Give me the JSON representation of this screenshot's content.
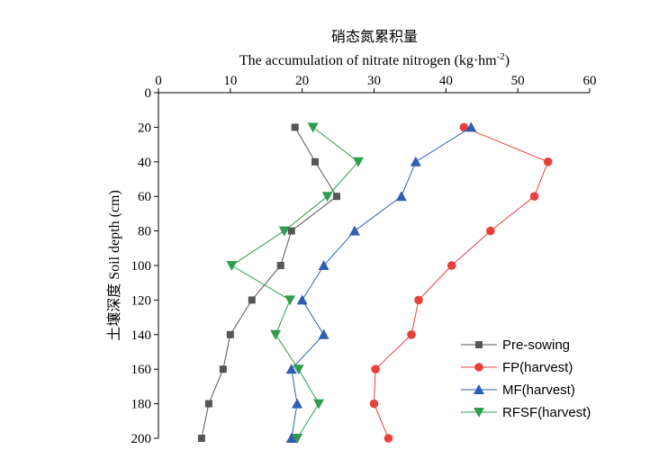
{
  "chart_data": {
    "type": "line",
    "title": "硝态氮累积量",
    "xlabel": "The accumulation of nitrate nitrogen (kg·hm",
    "xlabel_sup": "-2",
    "xlabel_end": ")",
    "ylabel": "土壤深度 Soil depth (cm)",
    "xlim": [
      0,
      60
    ],
    "ylim": [
      0,
      200
    ],
    "y_inverted": true,
    "x_axis_position": "top",
    "x_ticks": [
      0,
      10,
      20,
      30,
      40,
      50,
      60
    ],
    "y_ticks": [
      0,
      20,
      40,
      60,
      80,
      100,
      120,
      140,
      160,
      180,
      200
    ],
    "grid": false,
    "legend_position": "bottom-right",
    "series": [
      {
        "name": "Pre-sowing",
        "color": "#555555",
        "marker": "square",
        "points": [
          {
            "x": 19.0,
            "y": 20
          },
          {
            "x": 21.8,
            "y": 40
          },
          {
            "x": 24.8,
            "y": 60
          },
          {
            "x": 18.5,
            "y": 80
          },
          {
            "x": 17.0,
            "y": 100
          },
          {
            "x": 13.0,
            "y": 120
          },
          {
            "x": 10.0,
            "y": 140
          },
          {
            "x": 9.0,
            "y": 160
          },
          {
            "x": 7.0,
            "y": 180
          },
          {
            "x": 6.0,
            "y": 200
          }
        ]
      },
      {
        "name": "FP(harvest)",
        "color": "#e8413c",
        "marker": "circle",
        "points": [
          {
            "x": 42.5,
            "y": 20
          },
          {
            "x": 54.2,
            "y": 40
          },
          {
            "x": 52.3,
            "y": 60
          },
          {
            "x": 46.2,
            "y": 80
          },
          {
            "x": 40.8,
            "y": 100
          },
          {
            "x": 36.2,
            "y": 120
          },
          {
            "x": 35.2,
            "y": 140
          },
          {
            "x": 30.2,
            "y": 160
          },
          {
            "x": 30.0,
            "y": 180
          },
          {
            "x": 32.0,
            "y": 200
          }
        ]
      },
      {
        "name": "MF(harvest)",
        "color": "#2f5eb3",
        "marker": "triangle-up",
        "points": [
          {
            "x": 43.5,
            "y": 20
          },
          {
            "x": 35.8,
            "y": 40
          },
          {
            "x": 33.8,
            "y": 60
          },
          {
            "x": 27.3,
            "y": 80
          },
          {
            "x": 23.0,
            "y": 100
          },
          {
            "x": 20.0,
            "y": 120
          },
          {
            "x": 23.0,
            "y": 140
          },
          {
            "x": 18.5,
            "y": 160
          },
          {
            "x": 19.3,
            "y": 180
          },
          {
            "x": 18.5,
            "y": 200
          }
        ]
      },
      {
        "name": "RFSF(harvest)",
        "color": "#2e9d4f",
        "marker": "triangle-down",
        "points": [
          {
            "x": 21.5,
            "y": 20
          },
          {
            "x": 27.8,
            "y": 40
          },
          {
            "x": 23.5,
            "y": 60
          },
          {
            "x": 17.5,
            "y": 80
          },
          {
            "x": 10.2,
            "y": 100
          },
          {
            "x": 18.3,
            "y": 120
          },
          {
            "x": 16.3,
            "y": 140
          },
          {
            "x": 19.5,
            "y": 160
          },
          {
            "x": 22.3,
            "y": 180
          },
          {
            "x": 19.3,
            "y": 200
          }
        ]
      }
    ]
  }
}
